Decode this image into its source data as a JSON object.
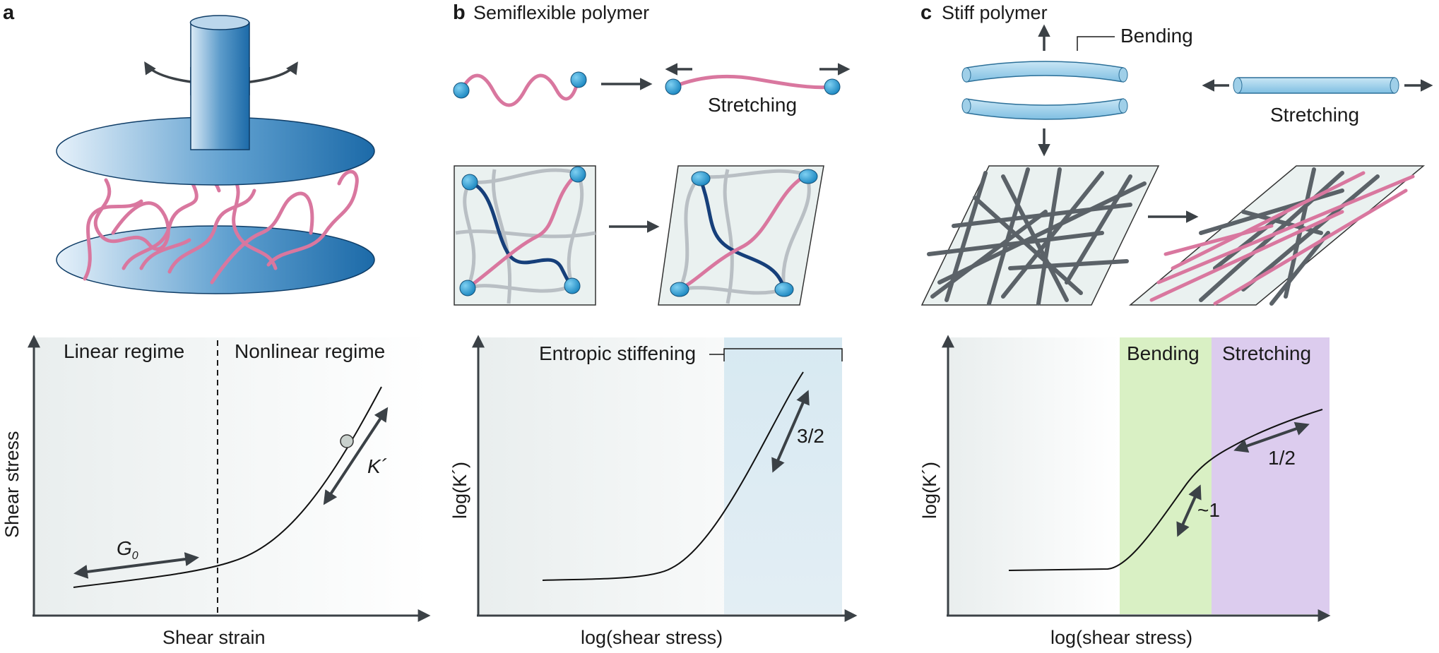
{
  "panel_a": {
    "letter": "a",
    "linear_label": "Linear regime",
    "nonlinear_label": "Nonlinear regime",
    "ylabel": "Shear stress",
    "xlabel": "Shear strain",
    "g0_label": "G",
    "g0_sub": "0",
    "k_label": "K´"
  },
  "panel_b": {
    "letter": "b",
    "title": "Semiflexible polymer",
    "stretching_label": "Stretching",
    "stiffening_label": "Entropic stiffening",
    "slope_label": "3/2",
    "ylabel": "log(K´)",
    "xlabel": "log(shear stress)"
  },
  "panel_c": {
    "letter": "c",
    "title": "Stiff polymer",
    "bending_top_label": "Bending",
    "stretching_top_label": "Stretching",
    "bending_region_label": "Bending",
    "stretching_region_label": "Stretching",
    "slope_1_label": "~1",
    "slope_half_label": "1/2",
    "ylabel": "log(K´)",
    "xlabel": "log(shear stress)"
  },
  "colors": {
    "pink": "#d9779f",
    "navy": "#163f7a",
    "gray_fiber": "#b9bfc4",
    "dark_fiber": "#5b6268",
    "bead": "#2a9ad0",
    "rod": "#9fcfe8",
    "bending_region": "#d9f0c4",
    "stretching_region": "#dcccee",
    "stiffening_region": "#d7e9f2",
    "arrow": "#3b4146"
  }
}
